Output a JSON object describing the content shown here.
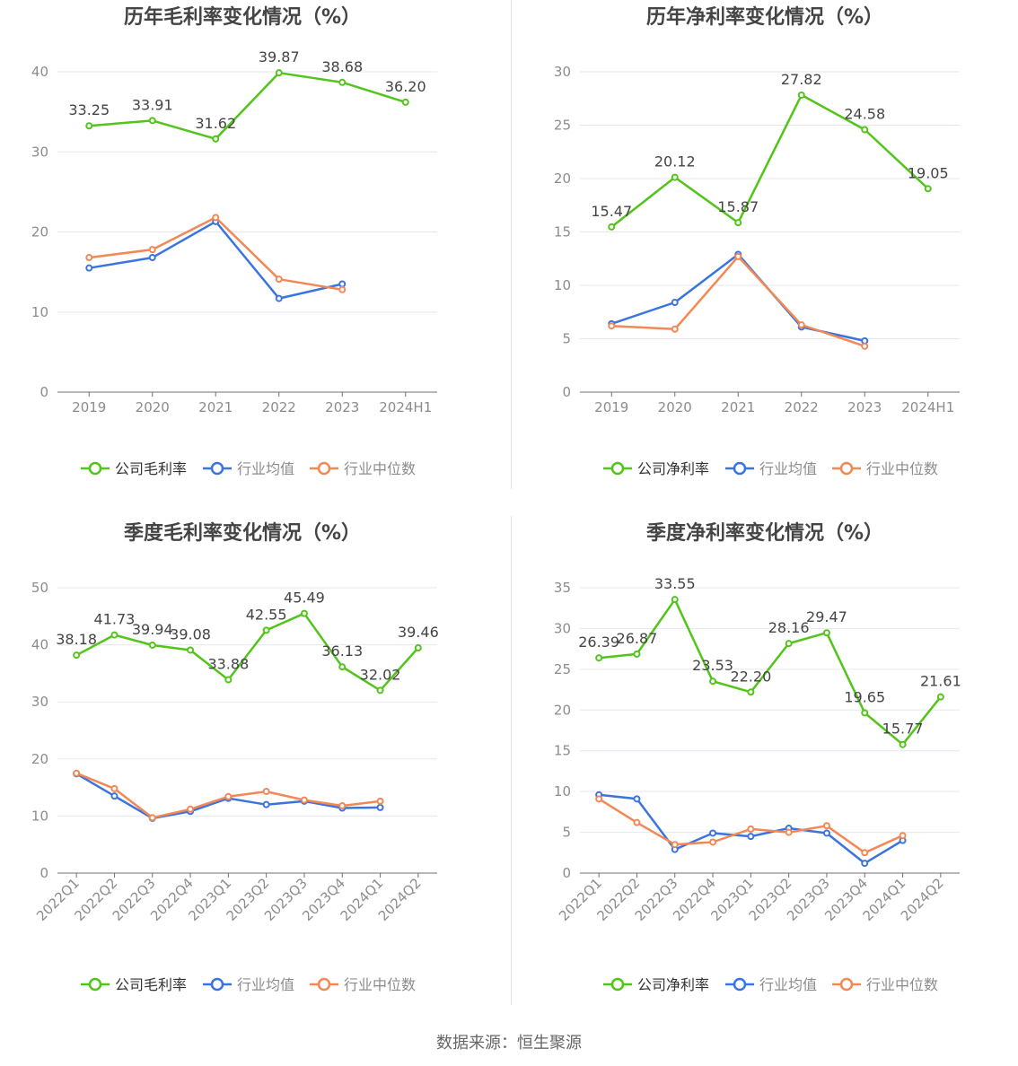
{
  "colors": {
    "company": "#52c41a",
    "industry_avg": "#3b74e0",
    "industry_median": "#f28855",
    "grid": "#e6e6f0",
    "axis": "#6e7079",
    "tick_text": "#8c8c8c",
    "title": "#444444",
    "label": "#444444"
  },
  "source_text": "数据来源：恒生聚源",
  "chart_data": [
    {
      "type": "line",
      "title": "历年毛利率变化情况（%）",
      "categories": [
        "2019",
        "2020",
        "2021",
        "2022",
        "2023",
        "2024H1"
      ],
      "ylim": [
        0,
        40
      ],
      "yticks": [
        0,
        10,
        20,
        30,
        40
      ],
      "rotate_x_labels": false,
      "legend_position": "bottom",
      "series": [
        {
          "name": "公司毛利率",
          "key": "company",
          "values": [
            33.25,
            33.91,
            31.62,
            39.87,
            38.68,
            36.2
          ],
          "labels": [
            "33.25",
            "33.91",
            "31.62",
            "39.87",
            "38.68",
            "36.20"
          ]
        },
        {
          "name": "行业均值",
          "key": "industry_avg",
          "values": [
            15.5,
            16.8,
            21.3,
            11.7,
            13.5,
            null
          ]
        },
        {
          "name": "行业中位数",
          "key": "industry_median",
          "values": [
            16.8,
            17.8,
            21.8,
            14.1,
            12.8,
            null
          ]
        }
      ]
    },
    {
      "type": "line",
      "title": "历年净利率变化情况（%）",
      "categories": [
        "2019",
        "2020",
        "2021",
        "2022",
        "2023",
        "2024H1"
      ],
      "ylim": [
        0,
        30
      ],
      "yticks": [
        0,
        5,
        10,
        15,
        20,
        25,
        30
      ],
      "rotate_x_labels": false,
      "legend_position": "bottom",
      "series": [
        {
          "name": "公司净利率",
          "key": "company",
          "values": [
            15.47,
            20.12,
            15.87,
            27.82,
            24.58,
            19.05
          ],
          "labels": [
            "15.47",
            "20.12",
            "15.87",
            "27.82",
            "24.58",
            "19.05"
          ]
        },
        {
          "name": "行业均值",
          "key": "industry_avg",
          "values": [
            6.4,
            8.4,
            12.9,
            6.1,
            4.8,
            null
          ]
        },
        {
          "name": "行业中位数",
          "key": "industry_median",
          "values": [
            6.2,
            5.9,
            12.7,
            6.3,
            4.3,
            null
          ]
        }
      ]
    },
    {
      "type": "line",
      "title": "季度毛利率变化情况（%）",
      "categories": [
        "2022Q1",
        "2022Q2",
        "2022Q3",
        "2022Q4",
        "2023Q1",
        "2023Q2",
        "2023Q3",
        "2023Q4",
        "2024Q1",
        "2024Q2"
      ],
      "ylim": [
        0,
        50
      ],
      "yticks": [
        0,
        10,
        20,
        30,
        40,
        50
      ],
      "rotate_x_labels": true,
      "legend_position": "bottom",
      "series": [
        {
          "name": "公司毛利率",
          "key": "company",
          "values": [
            38.18,
            41.73,
            39.94,
            39.08,
            33.88,
            42.55,
            45.49,
            36.13,
            32.02,
            39.46
          ],
          "labels": [
            "38.18",
            "41.73",
            "39.94",
            "39.08",
            "33.88",
            "42.55",
            "45.49",
            "36.13",
            "32.02",
            "39.46"
          ]
        },
        {
          "name": "行业均值",
          "key": "industry_avg",
          "values": [
            17.4,
            13.5,
            9.6,
            10.8,
            13.1,
            12.0,
            12.6,
            11.4,
            11.5,
            null
          ]
        },
        {
          "name": "行业中位数",
          "key": "industry_median",
          "values": [
            17.5,
            14.8,
            9.7,
            11.2,
            13.4,
            14.3,
            12.8,
            11.8,
            12.6,
            null
          ]
        }
      ]
    },
    {
      "type": "line",
      "title": "季度净利率变化情况（%）",
      "categories": [
        "2022Q1",
        "2022Q2",
        "2022Q3",
        "2022Q4",
        "2023Q1",
        "2023Q2",
        "2023Q3",
        "2023Q4",
        "2024Q1",
        "2024Q2"
      ],
      "ylim": [
        0,
        35
      ],
      "yticks": [
        0,
        5,
        10,
        15,
        20,
        25,
        30,
        35
      ],
      "rotate_x_labels": true,
      "legend_position": "bottom",
      "series": [
        {
          "name": "公司净利率",
          "key": "company",
          "values": [
            26.39,
            26.87,
            33.55,
            23.53,
            22.2,
            28.16,
            29.47,
            19.65,
            15.77,
            21.61
          ],
          "labels": [
            "26.39",
            "26.87",
            "33.55",
            "23.53",
            "22.20",
            "28.16",
            "29.47",
            "19.65",
            "15.77",
            "21.61"
          ]
        },
        {
          "name": "行业均值",
          "key": "industry_avg",
          "values": [
            9.6,
            9.1,
            2.9,
            4.9,
            4.5,
            5.5,
            4.9,
            1.2,
            4.0,
            null
          ]
        },
        {
          "name": "行业中位数",
          "key": "industry_median",
          "values": [
            9.1,
            6.2,
            3.5,
            3.8,
            5.4,
            5.0,
            5.8,
            2.5,
            4.6,
            null
          ]
        }
      ]
    }
  ]
}
